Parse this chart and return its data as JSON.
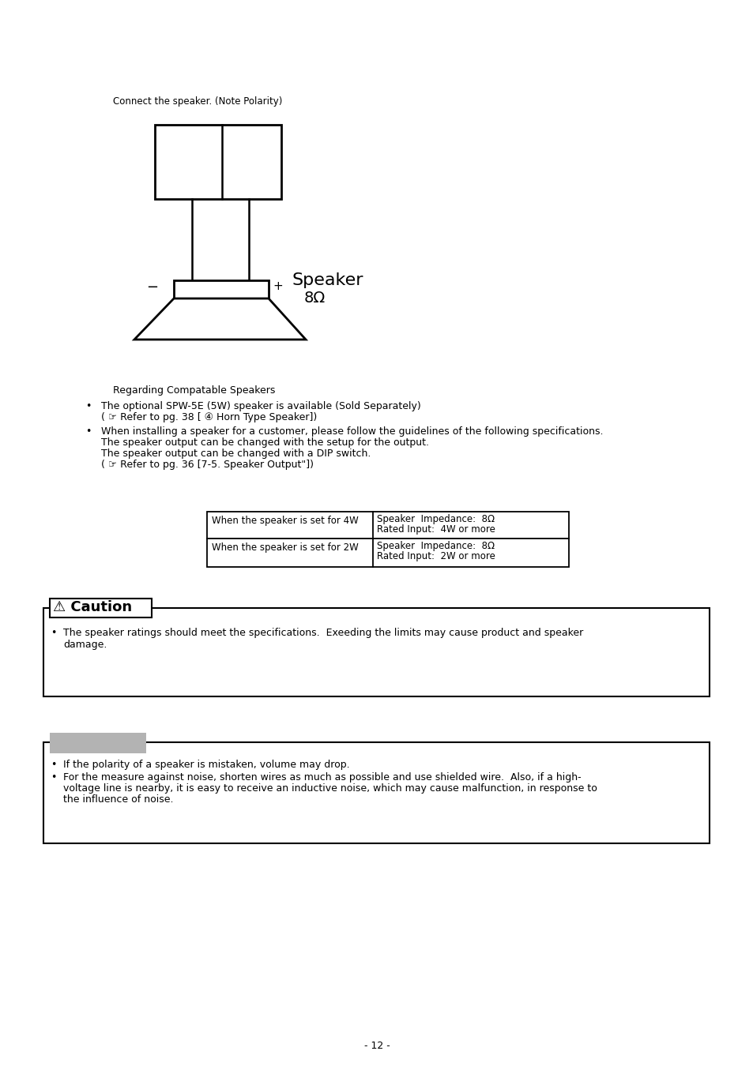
{
  "bg_color": "#ffffff",
  "text_color": "#000000",
  "page_number": "- 12 -",
  "connect_speaker_text": "Connect the speaker. (Note Polarity)",
  "speaker_label_line1": "Speaker",
  "speaker_label_line2": "8Ω",
  "plus_sign": "+",
  "minus_sign": "−",
  "regarding_text": "Regarding Compatable Speakers",
  "bullet1_line1": "The optional SPW-5E (5W) speaker is available (Sold Separately)",
  "bullet1_line2": "( ☞ Refer to pg. 38 [ ④ Horn Type Speaker])",
  "bullet2_line1": "When installing a speaker for a customer, please follow the guidelines of the following specifications.",
  "bullet2_line2": "The speaker output can be changed with the setup for the output.",
  "bullet2_line3": "The speaker output can be changed with a DIP switch.",
  "bullet2_line4": "( ☞ Refer to pg. 36 [7-5. Speaker Output\"])",
  "table_col1_row1": "When the speaker is set for 4W",
  "table_col2_row1_line1": "Speaker  Impedance:  8Ω",
  "table_col2_row1_line2": "Rated Input:  4W or more",
  "table_col1_row2": "When the speaker is set for 2W",
  "table_col2_row2_line1": "Speaker  Impedance:  8Ω",
  "table_col2_row2_line2": "Rated Input:  2W or more",
  "caution_title": "⚠ Caution",
  "caution_bullet": "The speaker ratings should meet the specifications.  Exeeding the limits may cause product and speaker\ndamage.",
  "note_bullet1": "If the polarity of a speaker is mistaken, volume may drop.",
  "note_bullet2_parts": [
    "For the measure against noise, shorten wires as much as possible and use shielded wire.  Also, if a high-",
    "voltage line is nearby, it is easy to receive an inductive noise, which may cause malfunction, in response to",
    "the influence of noise."
  ],
  "gray_box_color": "#b3b3b3"
}
